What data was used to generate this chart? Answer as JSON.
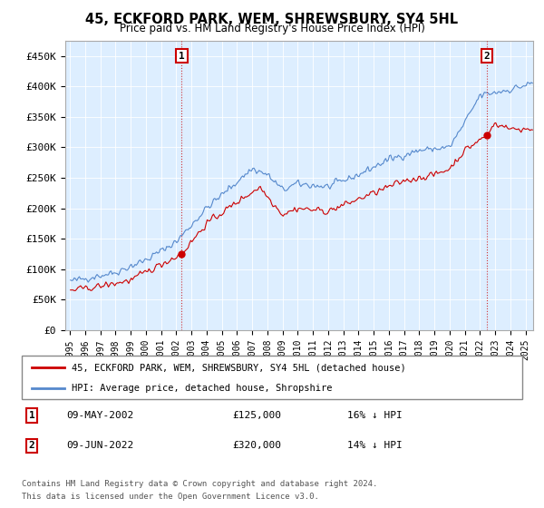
{
  "title": "45, ECKFORD PARK, WEM, SHREWSBURY, SY4 5HL",
  "subtitle": "Price paid vs. HM Land Registry's House Price Index (HPI)",
  "red_label": "45, ECKFORD PARK, WEM, SHREWSBURY, SY4 5HL (detached house)",
  "blue_label": "HPI: Average price, detached house, Shropshire",
  "ann1_date": "09-MAY-2002",
  "ann1_price": "£125,000",
  "ann1_pct": "16% ↓ HPI",
  "ann1_year": 2002.37,
  "ann1_value": 125000,
  "ann2_date": "09-JUN-2022",
  "ann2_price": "£320,000",
  "ann2_pct": "14% ↓ HPI",
  "ann2_year": 2022.45,
  "ann2_value": 320000,
  "footnote1": "Contains HM Land Registry data © Crown copyright and database right 2024.",
  "footnote2": "This data is licensed under the Open Government Licence v3.0.",
  "ylim": [
    0,
    475000
  ],
  "yticks": [
    0,
    50000,
    100000,
    150000,
    200000,
    250000,
    300000,
    350000,
    400000,
    450000
  ],
  "ytick_labels": [
    "£0",
    "£50K",
    "£100K",
    "£150K",
    "£200K",
    "£250K",
    "£300K",
    "£350K",
    "£400K",
    "£450K"
  ],
  "red_color": "#cc0000",
  "blue_color": "#5588cc",
  "plot_bg_color": "#ddeeff",
  "background_color": "#ffffff",
  "grid_color": "#ffffff"
}
